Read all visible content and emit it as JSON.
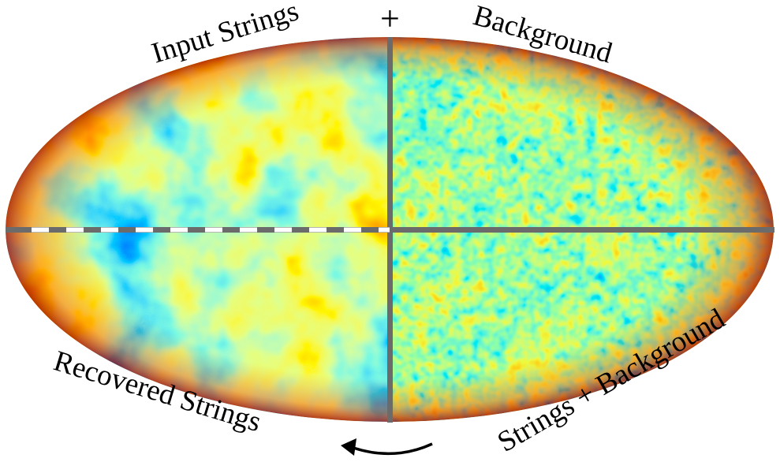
{
  "labels": {
    "input_strings": "Input Strings",
    "plus": "+",
    "background": "Background",
    "recovered_strings": "Recovered Strings",
    "strings_plus_background": "Strings + Background"
  },
  "colors": {
    "divider": "#6b6b6b",
    "dash_white": "#ffffff",
    "colormap": [
      "#00008f",
      "#0020ff",
      "#00a0ff",
      "#40ffc0",
      "#c0ff40",
      "#ffe000",
      "#ff6000",
      "#c00000",
      "#800000"
    ]
  },
  "arrow_icon": "curved-arrow-left-icon"
}
